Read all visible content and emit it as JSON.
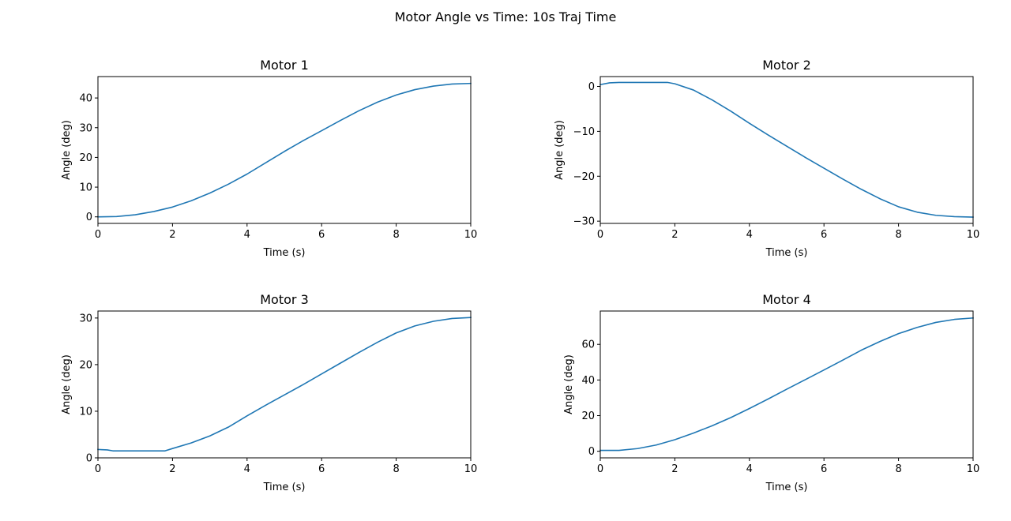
{
  "figure": {
    "title": "Motor Angle vs Time: 10s Traj Time"
  },
  "colors": {
    "line": "#1f77b4",
    "axes": "#000000",
    "background": "#ffffff"
  },
  "chart_data": [
    {
      "type": "line",
      "title": "Motor 1",
      "xlabel": "Time (s)",
      "ylabel": "Angle (deg)",
      "xlim": [
        0,
        10
      ],
      "ylim": [
        -2.2,
        47.2
      ],
      "xticks": [
        0,
        2,
        4,
        6,
        8,
        10
      ],
      "yticks": [
        0,
        10,
        20,
        30,
        40
      ],
      "grid": false,
      "series": [
        {
          "x": [
            0,
            0.5,
            1,
            1.5,
            2,
            2.5,
            3,
            3.5,
            4,
            4.5,
            5,
            5.5,
            6,
            6.5,
            7,
            7.5,
            8,
            8.5,
            9,
            9.5,
            10
          ],
          "values": [
            0,
            0.1,
            0.7,
            1.8,
            3.3,
            5.4,
            8.0,
            11.0,
            14.4,
            18.2,
            22.0,
            25.6,
            29.0,
            32.4,
            35.7,
            38.6,
            41.0,
            42.8,
            44.0,
            44.7,
            44.9
          ]
        }
      ]
    },
    {
      "type": "line",
      "title": "Motor 2",
      "xlabel": "Time (s)",
      "ylabel": "Angle (deg)",
      "xlim": [
        0,
        10
      ],
      "ylim": [
        -30.5,
        2.2
      ],
      "xticks": [
        0,
        2,
        4,
        6,
        8,
        10
      ],
      "yticks": [
        -30,
        -20,
        -10,
        0
      ],
      "tick_labels_y": [
        "−30",
        "−20",
        "−10",
        "0"
      ],
      "grid": false,
      "series": [
        {
          "x": [
            0,
            0.25,
            0.5,
            1,
            1.5,
            1.8,
            2,
            2.5,
            3,
            3.5,
            4,
            4.5,
            5,
            5.5,
            6,
            6.5,
            7,
            7.5,
            8,
            8.5,
            9,
            9.5,
            10
          ],
          "values": [
            0.4,
            0.8,
            0.9,
            0.9,
            0.9,
            0.9,
            0.6,
            -0.8,
            -3.0,
            -5.5,
            -8.2,
            -10.8,
            -13.3,
            -15.8,
            -18.2,
            -20.6,
            -22.9,
            -25.0,
            -26.8,
            -28.0,
            -28.7,
            -29.0,
            -29.1
          ]
        }
      ]
    },
    {
      "type": "line",
      "title": "Motor 3",
      "xlabel": "Time (s)",
      "ylabel": "Angle (deg)",
      "xlim": [
        0,
        10
      ],
      "ylim": [
        0,
        31.5
      ],
      "xticks": [
        0,
        2,
        4,
        6,
        8,
        10
      ],
      "yticks": [
        0,
        10,
        20,
        30
      ],
      "grid": false,
      "series": [
        {
          "x": [
            0,
            0.25,
            0.4,
            1,
            1.5,
            1.8,
            2,
            2.5,
            3,
            3.5,
            4,
            4.5,
            5,
            5.5,
            6,
            6.5,
            7,
            7.5,
            8,
            8.5,
            9,
            9.5,
            10
          ],
          "values": [
            1.8,
            1.7,
            1.5,
            1.5,
            1.5,
            1.5,
            2.0,
            3.2,
            4.7,
            6.6,
            9.0,
            11.3,
            13.5,
            15.7,
            18.0,
            20.3,
            22.6,
            24.8,
            26.8,
            28.3,
            29.3,
            29.9,
            30.1
          ]
        }
      ]
    },
    {
      "type": "line",
      "title": "Motor 4",
      "xlabel": "Time (s)",
      "ylabel": "Angle (deg)",
      "xlim": [
        0,
        10
      ],
      "ylim": [
        -3.7,
        78.7
      ],
      "xticks": [
        0,
        2,
        4,
        6,
        8,
        10
      ],
      "yticks": [
        0,
        20,
        40,
        60
      ],
      "grid": false,
      "series": [
        {
          "x": [
            0,
            0.5,
            1,
            1.5,
            2,
            2.5,
            3,
            3.5,
            4,
            4.5,
            5,
            5.5,
            6,
            6.5,
            7,
            7.5,
            8,
            8.5,
            9,
            9.5,
            10
          ],
          "values": [
            0.5,
            0.5,
            1.5,
            3.5,
            6.5,
            10.2,
            14.3,
            18.9,
            24.0,
            29.3,
            34.8,
            40.2,
            45.6,
            51.1,
            56.7,
            61.6,
            66.0,
            69.5,
            72.3,
            74.0,
            74.8
          ]
        }
      ]
    }
  ]
}
